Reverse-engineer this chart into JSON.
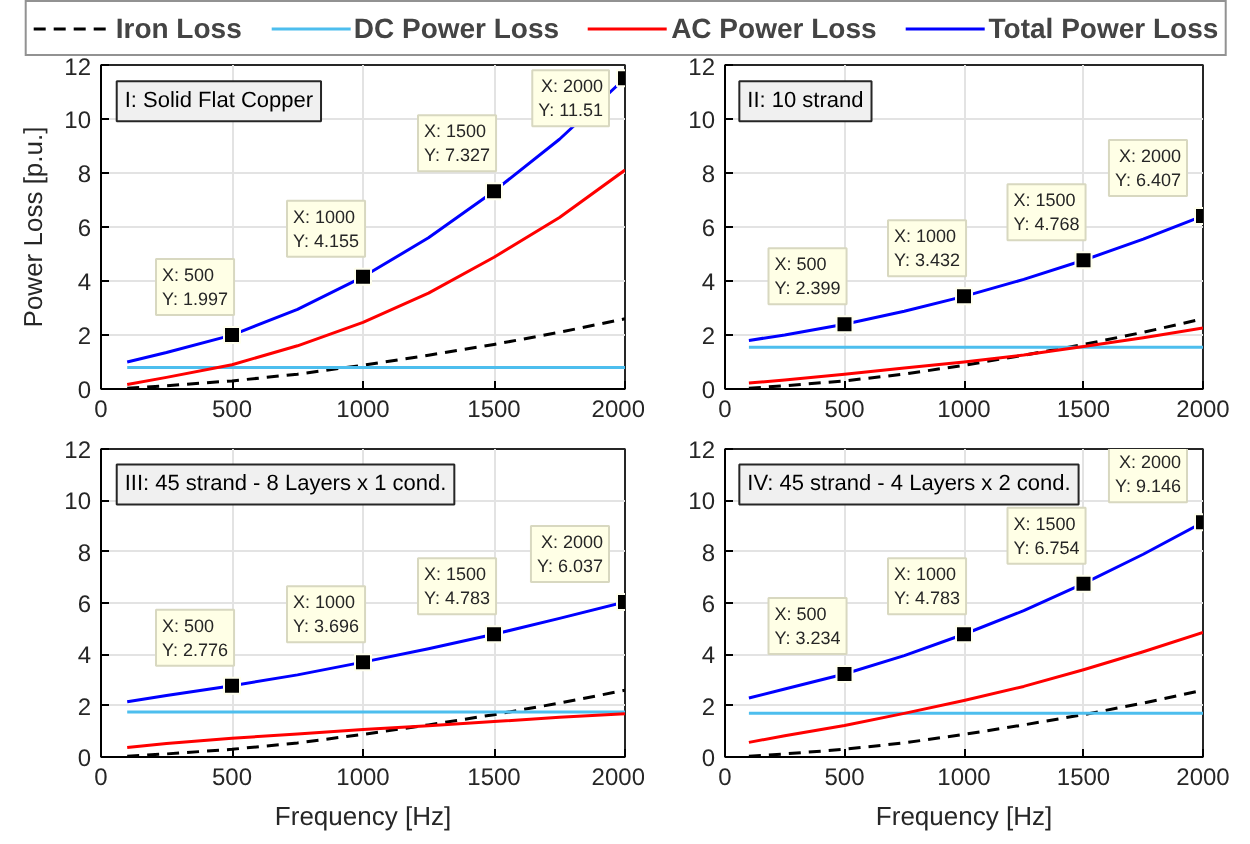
{
  "chart_data": [
    {
      "type": "line",
      "title": "I: Solid Flat Copper",
      "ylabel": "Power Loss [p.u.]",
      "x": [
        100,
        250,
        500,
        750,
        1000,
        1250,
        1500,
        1750,
        2000
      ],
      "xlim": [
        0,
        2000
      ],
      "ylim": [
        0,
        12
      ],
      "xticks": [
        0,
        500,
        1000,
        1500,
        2000
      ],
      "yticks": [
        0,
        2,
        4,
        6,
        8,
        10,
        12
      ],
      "grid": true,
      "legend": "top",
      "series": [
        {
          "name": "Iron Loss",
          "color": "#000000",
          "line_style": "dashed",
          "values": [
            0.03,
            0.12,
            0.3,
            0.55,
            0.88,
            1.25,
            1.65,
            2.1,
            2.6
          ]
        },
        {
          "name": "DC Power Loss",
          "color": "#4dbeee",
          "values": [
            0.8,
            0.8,
            0.8,
            0.8,
            0.8,
            0.8,
            0.8,
            0.8,
            0.8
          ]
        },
        {
          "name": "AC Power Loss",
          "color": "#ff0000",
          "values": [
            0.17,
            0.43,
            0.9,
            1.6,
            2.47,
            3.55,
            4.88,
            6.35,
            8.11
          ]
        },
        {
          "name": "Total Power Loss",
          "color": "#0000ff",
          "values": [
            1.0,
            1.35,
            1.997,
            2.95,
            4.155,
            5.6,
            7.327,
            9.25,
            11.51
          ]
        }
      ],
      "annotations": [
        {
          "text": "X: 500\nY: 1.997",
          "x": 500,
          "y": 1.997
        },
        {
          "text": "X: 1000\nY: 4.155",
          "x": 1000,
          "y": 4.155
        },
        {
          "text": "X: 1500\nY: 7.327",
          "x": 1500,
          "y": 7.327
        },
        {
          "text": "X: 2000\nY: 11.51",
          "x": 2000,
          "y": 11.51
        }
      ]
    },
    {
      "type": "line",
      "title": "II: 10 strand",
      "x": [
        100,
        250,
        500,
        750,
        1000,
        1250,
        1500,
        1750,
        2000
      ],
      "xlim": [
        0,
        2000
      ],
      "ylim": [
        0,
        12
      ],
      "xticks": [
        0,
        500,
        1000,
        1500,
        2000
      ],
      "yticks": [
        0,
        2,
        4,
        6,
        8,
        10,
        12
      ],
      "grid": true,
      "series": [
        {
          "color": "#000000",
          "line_style": "dashed",
          "values": [
            0.03,
            0.12,
            0.3,
            0.55,
            0.88,
            1.25,
            1.65,
            2.1,
            2.6
          ]
        },
        {
          "color": "#4dbeee",
          "values": [
            1.55,
            1.55,
            1.55,
            1.55,
            1.55,
            1.55,
            1.55,
            1.55,
            1.55
          ]
        },
        {
          "color": "#ff0000",
          "values": [
            0.22,
            0.33,
            0.55,
            0.78,
            1.0,
            1.26,
            1.57,
            1.9,
            2.26
          ]
        },
        {
          "color": "#0000ff",
          "values": [
            1.8,
            2.0,
            2.399,
            2.88,
            3.432,
            4.06,
            4.768,
            5.55,
            6.407
          ]
        }
      ],
      "annotations": [
        {
          "text": "X: 500\nY: 2.399",
          "x": 500,
          "y": 2.399
        },
        {
          "text": "X: 1000\nY: 3.432",
          "x": 1000,
          "y": 3.432
        },
        {
          "text": "X: 1500\nY: 4.768",
          "x": 1500,
          "y": 4.768
        },
        {
          "text": "X: 2000\nY: 6.407",
          "x": 2000,
          "y": 6.407
        }
      ]
    },
    {
      "type": "line",
      "title": "III: 45 strand - 8 Layers x 1 cond.",
      "xlabel": "Frequency [Hz]",
      "x": [
        100,
        250,
        500,
        750,
        1000,
        1250,
        1500,
        1750,
        2000
      ],
      "xlim": [
        0,
        2000
      ],
      "ylim": [
        0,
        12
      ],
      "xticks": [
        0,
        500,
        1000,
        1500,
        2000
      ],
      "yticks": [
        0,
        2,
        4,
        6,
        8,
        10,
        12
      ],
      "grid": true,
      "series": [
        {
          "color": "#000000",
          "line_style": "dashed",
          "values": [
            0.03,
            0.12,
            0.3,
            0.55,
            0.88,
            1.25,
            1.65,
            2.1,
            2.6
          ]
        },
        {
          "color": "#4dbeee",
          "values": [
            1.75,
            1.75,
            1.75,
            1.75,
            1.75,
            1.75,
            1.75,
            1.75,
            1.75
          ]
        },
        {
          "color": "#ff0000",
          "values": [
            0.37,
            0.53,
            0.73,
            0.9,
            1.07,
            1.22,
            1.38,
            1.55,
            1.69
          ]
        },
        {
          "color": "#0000ff",
          "values": [
            2.15,
            2.4,
            2.776,
            3.2,
            3.696,
            4.22,
            4.783,
            5.4,
            6.037
          ]
        }
      ],
      "annotations": [
        {
          "text": "X: 500\nY: 2.776",
          "x": 500,
          "y": 2.776
        },
        {
          "text": "X: 1000\nY: 3.696",
          "x": 1000,
          "y": 3.696
        },
        {
          "text": "X: 1500\nY: 4.783",
          "x": 1500,
          "y": 4.783
        },
        {
          "text": "X: 2000\nY: 6.037",
          "x": 2000,
          "y": 6.037
        }
      ]
    },
    {
      "type": "line",
      "title": "IV: 45 strand - 4 Layers x 2 cond.",
      "xlabel": "Frequency [Hz]",
      "x": [
        100,
        250,
        500,
        750,
        1000,
        1250,
        1500,
        1750,
        2000
      ],
      "xlim": [
        0,
        2000
      ],
      "ylim": [
        0,
        12
      ],
      "xticks": [
        0,
        500,
        1000,
        1500,
        2000
      ],
      "yticks": [
        0,
        2,
        4,
        6,
        8,
        10,
        12
      ],
      "grid": true,
      "series": [
        {
          "color": "#000000",
          "line_style": "dashed",
          "values": [
            0.03,
            0.12,
            0.3,
            0.55,
            0.88,
            1.25,
            1.65,
            2.1,
            2.6
          ]
        },
        {
          "color": "#4dbeee",
          "values": [
            1.7,
            1.7,
            1.7,
            1.7,
            1.7,
            1.7,
            1.7,
            1.7,
            1.7
          ]
        },
        {
          "color": "#ff0000",
          "values": [
            0.57,
            0.83,
            1.23,
            1.7,
            2.2,
            2.75,
            3.4,
            4.1,
            4.85
          ]
        },
        {
          "color": "#0000ff",
          "values": [
            2.3,
            2.65,
            3.234,
            3.95,
            4.783,
            5.7,
            6.754,
            7.9,
            9.146
          ]
        }
      ],
      "annotations": [
        {
          "text": "X: 500\nY: 3.234",
          "x": 500,
          "y": 3.234
        },
        {
          "text": "X: 1000\nY: 4.783",
          "x": 1000,
          "y": 4.783
        },
        {
          "text": "X: 1500\nY: 6.754",
          "x": 1500,
          "y": 6.754
        },
        {
          "text": "X: 2000\nY: 9.146",
          "x": 2000,
          "y": 9.146
        }
      ]
    }
  ]
}
